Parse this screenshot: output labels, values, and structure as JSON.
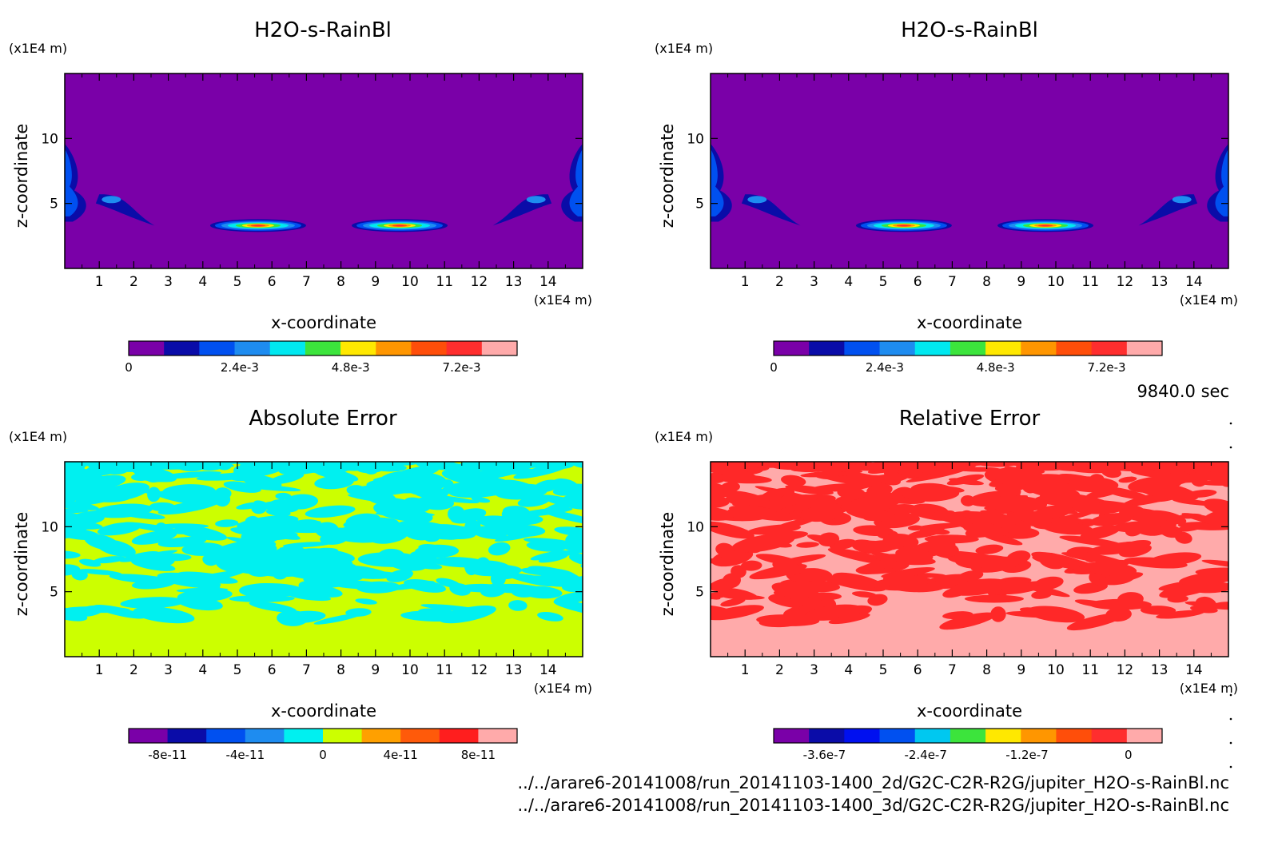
{
  "footer": {
    "time_label": "9840.0 sec",
    "file_1": "../../arare6-20141008/run_20141103-1400_2d/G2C-C2R-R2G/jupiter_H2O-s-RainBl.nc",
    "file_2": "../../arare6-20141008/run_20141103-1400_3d/G2C-C2R-R2G/jupiter_H2O-s-RainBl.nc"
  },
  "chart_data": [
    {
      "type": "heatmap",
      "title": "H2O-s-RainBl",
      "xlabel": "x-coordinate",
      "ylabel": "z-coordinate",
      "x_unit": "(x1E4 m)",
      "y_unit": "(x1E4 m)",
      "xlim": [
        0,
        15
      ],
      "ylim": [
        0,
        15
      ],
      "x_ticks": [
        "1",
        "2",
        "3",
        "4",
        "5",
        "6",
        "7",
        "8",
        "9",
        "10",
        "11",
        "12",
        "13",
        "14"
      ],
      "y_ticks": [
        "5",
        "10"
      ],
      "field": "rain",
      "colorbar": {
        "colors": [
          "#7a00a8",
          "#0a0ca8",
          "#0050f0",
          "#1e8cf0",
          "#00e8f0",
          "#3ce43c",
          "#ffe800",
          "#ff9600",
          "#ff4e0a",
          "#ff2e2e",
          "#ffaaaa"
        ],
        "tick_labels": [
          "0",
          "2.4e-3",
          "4.8e-3",
          "7.2e-3"
        ],
        "tick_values": [
          0,
          0.0024,
          0.0048,
          0.0072
        ],
        "range": [
          0,
          0.0084
        ]
      }
    },
    {
      "type": "heatmap",
      "title": "H2O-s-RainBl",
      "xlabel": "x-coordinate",
      "ylabel": "z-coordinate",
      "x_unit": "(x1E4 m)",
      "y_unit": "(x1E4 m)",
      "xlim": [
        0,
        15
      ],
      "ylim": [
        0,
        15
      ],
      "x_ticks": [
        "1",
        "2",
        "3",
        "4",
        "5",
        "6",
        "7",
        "8",
        "9",
        "10",
        "11",
        "12",
        "13",
        "14"
      ],
      "y_ticks": [
        "5",
        "10"
      ],
      "field": "rain",
      "colorbar": {
        "colors": [
          "#7a00a8",
          "#0a0ca8",
          "#0050f0",
          "#1e8cf0",
          "#00e8f0",
          "#3ce43c",
          "#ffe800",
          "#ff9600",
          "#ff4e0a",
          "#ff2e2e",
          "#ffaaaa"
        ],
        "tick_labels": [
          "0",
          "2.4e-3",
          "4.8e-3",
          "7.2e-3"
        ],
        "tick_values": [
          0,
          0.0024,
          0.0048,
          0.0072
        ],
        "range": [
          0,
          0.0084
        ]
      }
    },
    {
      "type": "heatmap",
      "title": "Absolute Error",
      "xlabel": "x-coordinate",
      "ylabel": "z-coordinate",
      "x_unit": "(x1E4 m)",
      "y_unit": "(x1E4 m)",
      "xlim": [
        0,
        15
      ],
      "ylim": [
        0,
        15
      ],
      "x_ticks": [
        "1",
        "2",
        "3",
        "4",
        "5",
        "6",
        "7",
        "8",
        "9",
        "10",
        "11",
        "12",
        "13",
        "14"
      ],
      "y_ticks": [
        "5",
        "10"
      ],
      "field": "abs_error",
      "base_color": "#ccff00",
      "blob_color": "#00f0f0",
      "colorbar": {
        "colors": [
          "#7a00a8",
          "#0a0ca8",
          "#0050f0",
          "#1e8cf0",
          "#00f0f0",
          "#ccff00",
          "#ffa000",
          "#ff5a0a",
          "#ff1e1e",
          "#ffaaaa"
        ],
        "tick_labels": [
          "-8e-11",
          "-4e-11",
          "0",
          "4e-11",
          "8e-11"
        ],
        "tick_values": [
          -8e-11,
          -4e-11,
          0,
          4e-11,
          8e-11
        ],
        "range": [
          -1e-10,
          1e-10
        ]
      }
    },
    {
      "type": "heatmap",
      "title": "Relative Error",
      "xlabel": "x-coordinate",
      "ylabel": "z-coordinate",
      "x_unit": "(x1E4 m)",
      "y_unit": "(x1E4 m)",
      "xlim": [
        0,
        15
      ],
      "ylim": [
        0,
        15
      ],
      "x_ticks": [
        "1",
        "2",
        "3",
        "4",
        "5",
        "6",
        "7",
        "8",
        "9",
        "10",
        "11",
        "12",
        "13",
        "14"
      ],
      "y_ticks": [
        "5",
        "10"
      ],
      "field": "rel_error",
      "base_color": "#ffaaaa",
      "blob_color": "#ff2828",
      "colorbar": {
        "colors": [
          "#7a00a8",
          "#0a0ca8",
          "#0010f0",
          "#0050f0",
          "#00c8f0",
          "#3ce43c",
          "#ffe800",
          "#ff9600",
          "#ff4e0a",
          "#ff2e2e",
          "#ffaaaa"
        ],
        "tick_labels": [
          "-3.6e-7",
          "-2.4e-7",
          "-1.2e-7",
          "0"
        ],
        "tick_values": [
          -3.6e-07,
          -2.4e-07,
          -1.2e-07,
          0
        ],
        "range": [
          -4.2e-07,
          4e-08
        ]
      }
    }
  ]
}
